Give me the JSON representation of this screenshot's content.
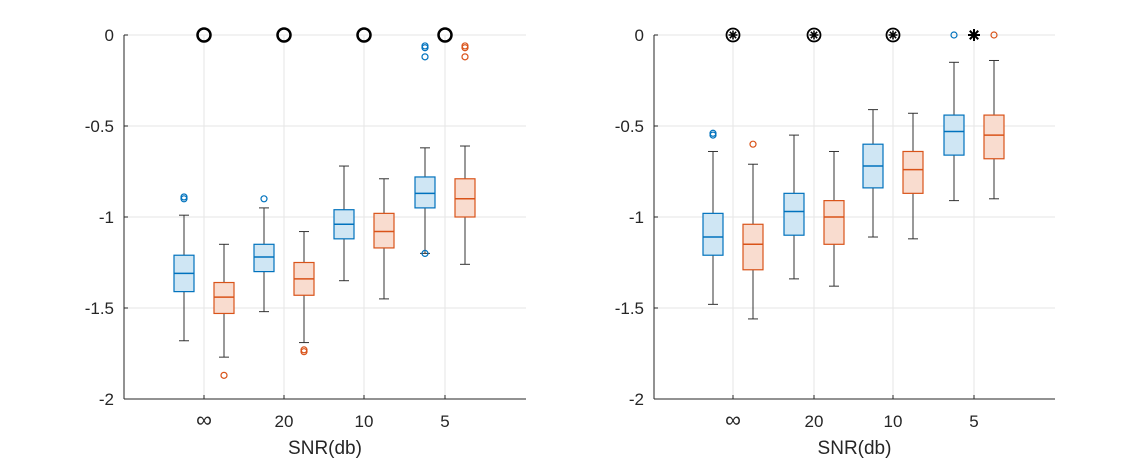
{
  "colors": {
    "blue": "#0072BD",
    "blue_fill": "#CFE6F4",
    "orange": "#D95319",
    "orange_fill": "#F9DCCF",
    "whisker": "#333333",
    "grid": "#E6E6E6",
    "axis": "#262626"
  },
  "chart_data": [
    {
      "type": "box",
      "title": "",
      "xlabel": "SNR(db)",
      "ylabel": "",
      "ylim": [
        -2,
        0
      ],
      "yticks": [
        0,
        -0.5,
        -1,
        -1.5,
        -2
      ],
      "ytick_labels": [
        "0",
        "-0.5",
        "-1",
        "-1.5",
        "-2"
      ],
      "categories": [
        "∞",
        "20",
        "10",
        "5"
      ],
      "grid": true,
      "series": [
        {
          "name": "series-blue",
          "color_key": "blue",
          "boxes": [
            {
              "q1": -1.41,
              "median": -1.31,
              "q3": -1.21,
              "whisker_low": -1.68,
              "whisker_high": -0.99,
              "outliers": [
                -0.89,
                -0.9
              ]
            },
            {
              "q1": -1.3,
              "median": -1.22,
              "q3": -1.15,
              "whisker_low": -1.52,
              "whisker_high": -0.95,
              "outliers": [
                -0.9
              ]
            },
            {
              "q1": -1.12,
              "median": -1.04,
              "q3": -0.96,
              "whisker_low": -1.35,
              "whisker_high": -0.72,
              "outliers": []
            },
            {
              "q1": -0.95,
              "median": -0.87,
              "q3": -0.78,
              "whisker_low": -1.2,
              "whisker_high": -0.62,
              "outliers": [
                -0.06,
                -0.07,
                -0.12,
                -1.2
              ]
            }
          ]
        },
        {
          "name": "series-orange",
          "color_key": "orange",
          "boxes": [
            {
              "q1": -1.53,
              "median": -1.44,
              "q3": -1.36,
              "whisker_low": -1.77,
              "whisker_high": -1.15,
              "outliers": [
                -1.87
              ]
            },
            {
              "q1": -1.43,
              "median": -1.34,
              "q3": -1.25,
              "whisker_low": -1.69,
              "whisker_high": -1.08,
              "outliers": [
                -1.73,
                -1.74
              ]
            },
            {
              "q1": -1.17,
              "median": -1.08,
              "q3": -0.98,
              "whisker_low": -1.45,
              "whisker_high": -0.79,
              "outliers": []
            },
            {
              "q1": -1.0,
              "median": -0.9,
              "q3": -0.79,
              "whisker_low": -1.26,
              "whisker_high": -0.61,
              "outliers": [
                -0.06,
                -0.07,
                -0.12
              ]
            }
          ]
        }
      ],
      "significance_markers": [
        {
          "category": "∞",
          "value": 0,
          "symbol": "circle"
        },
        {
          "category": "20",
          "value": 0,
          "symbol": "circle"
        },
        {
          "category": "10",
          "value": 0,
          "symbol": "circle"
        },
        {
          "category": "5",
          "value": 0,
          "symbol": "circle"
        }
      ]
    },
    {
      "type": "box",
      "title": "",
      "xlabel": "SNR(db)",
      "ylabel": "",
      "ylim": [
        -2,
        0
      ],
      "yticks": [
        0,
        -0.5,
        -1,
        -1.5,
        -2
      ],
      "ytick_labels": [
        "0",
        "-0.5",
        "-1",
        "-1.5",
        "-2"
      ],
      "categories": [
        "∞",
        "20",
        "10",
        "5"
      ],
      "grid": true,
      "series": [
        {
          "name": "series-blue",
          "color_key": "blue",
          "boxes": [
            {
              "q1": -1.21,
              "median": -1.11,
              "q3": -0.98,
              "whisker_low": -1.48,
              "whisker_high": -0.64,
              "outliers": [
                -0.54,
                -0.55
              ]
            },
            {
              "q1": -1.1,
              "median": -0.97,
              "q3": -0.87,
              "whisker_low": -1.34,
              "whisker_high": -0.55,
              "outliers": []
            },
            {
              "q1": -0.84,
              "median": -0.72,
              "q3": -0.6,
              "whisker_low": -1.11,
              "whisker_high": -0.41,
              "outliers": []
            },
            {
              "q1": -0.66,
              "median": -0.53,
              "q3": -0.44,
              "whisker_low": -0.91,
              "whisker_high": -0.15,
              "outliers": [
                0
              ]
            }
          ]
        },
        {
          "name": "series-orange",
          "color_key": "orange",
          "boxes": [
            {
              "q1": -1.29,
              "median": -1.15,
              "q3": -1.04,
              "whisker_low": -1.56,
              "whisker_high": -0.71,
              "outliers": [
                -0.6
              ]
            },
            {
              "q1": -1.15,
              "median": -1.0,
              "q3": -0.91,
              "whisker_low": -1.38,
              "whisker_high": -0.64,
              "outliers": []
            },
            {
              "q1": -0.87,
              "median": -0.74,
              "q3": -0.64,
              "whisker_low": -1.12,
              "whisker_high": -0.43,
              "outliers": []
            },
            {
              "q1": -0.68,
              "median": -0.55,
              "q3": -0.44,
              "whisker_low": -0.9,
              "whisker_high": -0.14,
              "outliers": [
                0
              ]
            }
          ]
        }
      ],
      "significance_markers": [
        {
          "category": "∞",
          "value": 0,
          "symbol": "circled-asterisk"
        },
        {
          "category": "20",
          "value": 0,
          "symbol": "circled-asterisk"
        },
        {
          "category": "10",
          "value": 0,
          "symbol": "circled-asterisk"
        },
        {
          "category": "5",
          "value": 0,
          "symbol": "asterisk"
        }
      ]
    }
  ]
}
